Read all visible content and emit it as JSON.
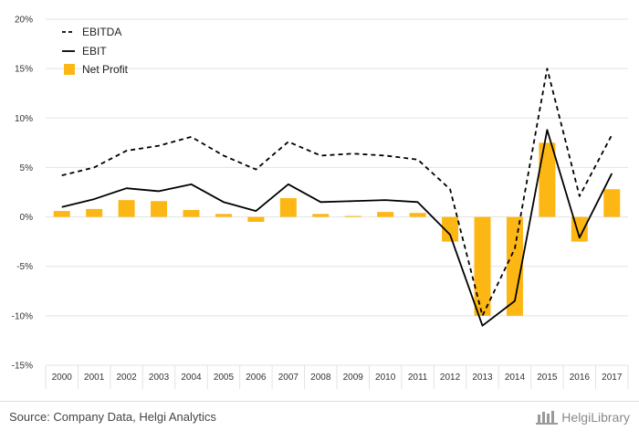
{
  "chart_data": {
    "type": "bar",
    "categories": [
      "2000",
      "2001",
      "2002",
      "2003",
      "2004",
      "2005",
      "2006",
      "2007",
      "2008",
      "2009",
      "2010",
      "2011",
      "2012",
      "2013",
      "2014",
      "2015",
      "2016",
      "2017"
    ],
    "y_ticks": [
      "20%",
      "15%",
      "10%",
      "5%",
      "0%",
      "-5%",
      "-10%",
      "-15%"
    ],
    "ylim": [
      -15,
      20
    ],
    "y_unit": "%",
    "grid": true,
    "legend_position": "top-left",
    "series": [
      {
        "name": "EBITDA",
        "type": "line",
        "style": "dashed",
        "color": "#000000",
        "values": [
          4.2,
          5.0,
          6.7,
          7.2,
          8.1,
          6.2,
          4.8,
          7.6,
          6.2,
          6.4,
          6.2,
          5.8,
          2.8,
          -10.0,
          -3.2,
          15.0,
          2.1,
          8.3
        ]
      },
      {
        "name": "EBIT",
        "type": "line",
        "style": "solid",
        "color": "#000000",
        "values": [
          1.0,
          1.8,
          2.9,
          2.6,
          3.3,
          1.5,
          0.6,
          3.3,
          1.5,
          1.6,
          1.7,
          1.5,
          -1.8,
          -11.0,
          -8.5,
          8.8,
          -2.1,
          4.4
        ]
      },
      {
        "name": "Net Profit",
        "type": "bar",
        "color": "#FDB714",
        "values": [
          0.6,
          0.8,
          1.7,
          1.6,
          0.7,
          0.3,
          -0.5,
          1.9,
          0.3,
          0.1,
          0.5,
          0.4,
          -2.5,
          -10.0,
          -10.0,
          7.5,
          -2.5,
          2.8
        ]
      }
    ]
  },
  "footer": {
    "source": "Source: Company Data, Helgi Analytics",
    "brand": "HelgiLibrary"
  }
}
